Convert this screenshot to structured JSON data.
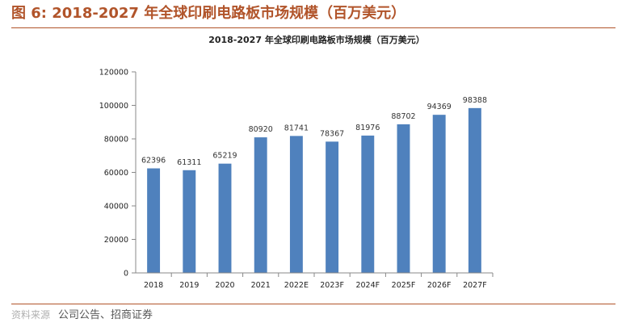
{
  "header": {
    "figure_title": "图 6: 2018-2027 年全球印刷电路板市场规模（百万美元）"
  },
  "footer": {
    "watermark": "资料来源",
    "source": "公司公告、招商证券"
  },
  "colors": {
    "accent": "#b1542a",
    "bar": "#4f81bd"
  },
  "chart_data": {
    "type": "bar",
    "title": "2018-2027 年全球印刷电路板市场规模（百万美元）",
    "xlabel": "",
    "ylabel": "",
    "categories": [
      "2018",
      "2019",
      "2020",
      "2021",
      "2022E",
      "2023F",
      "2024F",
      "2025F",
      "2026F",
      "2027F"
    ],
    "values": [
      62396,
      61311,
      65219,
      80920,
      81741,
      78367,
      81976,
      88702,
      94369,
      98388
    ],
    "ylim": [
      0,
      120000
    ],
    "yticks": [
      0,
      20000,
      40000,
      60000,
      80000,
      100000,
      120000
    ],
    "grid": false,
    "legend": "none",
    "data_labels": true
  }
}
